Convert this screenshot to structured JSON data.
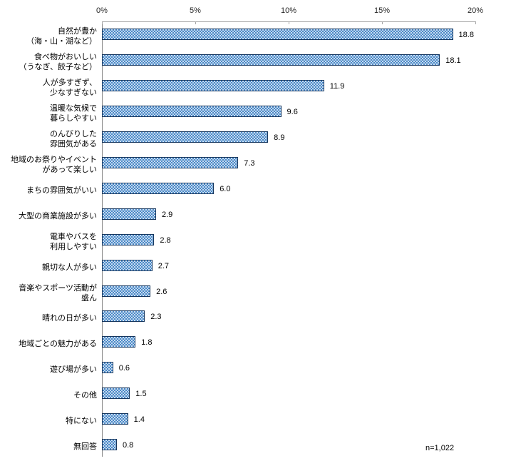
{
  "chart_data": {
    "type": "bar",
    "orientation": "horizontal",
    "title": "",
    "xlabel": "",
    "ylabel": "",
    "xlim": [
      0,
      20
    ],
    "x_ticks": [
      "0%",
      "5%",
      "10%",
      "15%",
      "20%"
    ],
    "x_tick_values": [
      0,
      5,
      10,
      15,
      20
    ],
    "grid": false,
    "legend": null,
    "categories": [
      [
        "自然が豊か",
        "（海・山・湖など）"
      ],
      [
        "食べ物がおいしい",
        "（うなぎ、餃子など）"
      ],
      [
        "人が多すぎず、",
        "少なすぎない"
      ],
      [
        "温暖な気候で",
        "暮らしやすい"
      ],
      [
        "のんびりした",
        "雰囲気がある"
      ],
      [
        "地域のお祭りやイベント",
        "があって楽しい"
      ],
      [
        "まちの雰囲気がいい"
      ],
      [
        "大型の商業施設が多い"
      ],
      [
        "電車やバスを",
        "利用しやすい"
      ],
      [
        "親切な人が多い"
      ],
      [
        "音楽やスポーツ活動が",
        "盛ん"
      ],
      [
        "晴れの日が多い"
      ],
      [
        "地域ごとの魅力がある"
      ],
      [
        "遊び場が多い"
      ],
      [
        "その他"
      ],
      [
        "特にない"
      ],
      [
        "無回答"
      ]
    ],
    "values": [
      18.8,
      18.1,
      11.9,
      9.6,
      8.9,
      7.3,
      6.0,
      2.9,
      2.8,
      2.7,
      2.6,
      2.3,
      1.8,
      0.6,
      1.5,
      1.4,
      0.8
    ],
    "value_label_decimals": 1,
    "annotation": "n=1,022",
    "colors": {
      "bar_fill": "#4a89c8",
      "bar_pattern_dot": "#ffffff",
      "bar_border": "#17375e",
      "axis_line": "#a6a6a6",
      "text": "#000000"
    }
  }
}
